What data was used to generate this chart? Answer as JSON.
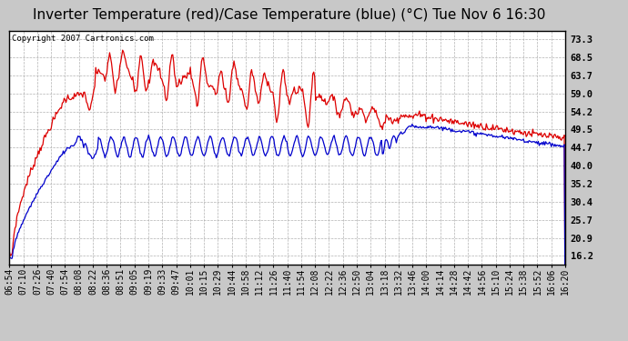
{
  "title": "Inverter Temperature (red)/Case Temperature (blue) (°C) Tue Nov 6 16:30",
  "copyright": "Copyright 2007 Cartronics.com",
  "yticks": [
    16.2,
    20.9,
    25.7,
    30.4,
    35.2,
    40.0,
    44.7,
    49.5,
    54.2,
    59.0,
    63.7,
    68.5,
    73.3
  ],
  "xtick_labels": [
    "06:54",
    "07:10",
    "07:26",
    "07:40",
    "07:54",
    "08:08",
    "08:22",
    "08:36",
    "08:51",
    "09:05",
    "09:19",
    "09:33",
    "09:47",
    "10:01",
    "10:15",
    "10:29",
    "10:44",
    "10:58",
    "11:12",
    "11:26",
    "11:40",
    "11:54",
    "12:08",
    "12:22",
    "12:36",
    "12:50",
    "13:04",
    "13:18",
    "13:32",
    "13:46",
    "14:00",
    "14:14",
    "14:28",
    "14:42",
    "14:56",
    "15:10",
    "15:24",
    "15:38",
    "15:52",
    "16:06",
    "16:20"
  ],
  "bg_color": "#c8c8c8",
  "plot_bg_color": "#ffffff",
  "red_color": "#dd0000",
  "blue_color": "#0000cc",
  "grid_color": "#aaaaaa",
  "title_fontsize": 11,
  "copyright_fontsize": 6.5,
  "tick_fontsize": 7,
  "ymin": 14.0,
  "ymax": 75.5,
  "linewidth": 0.9
}
